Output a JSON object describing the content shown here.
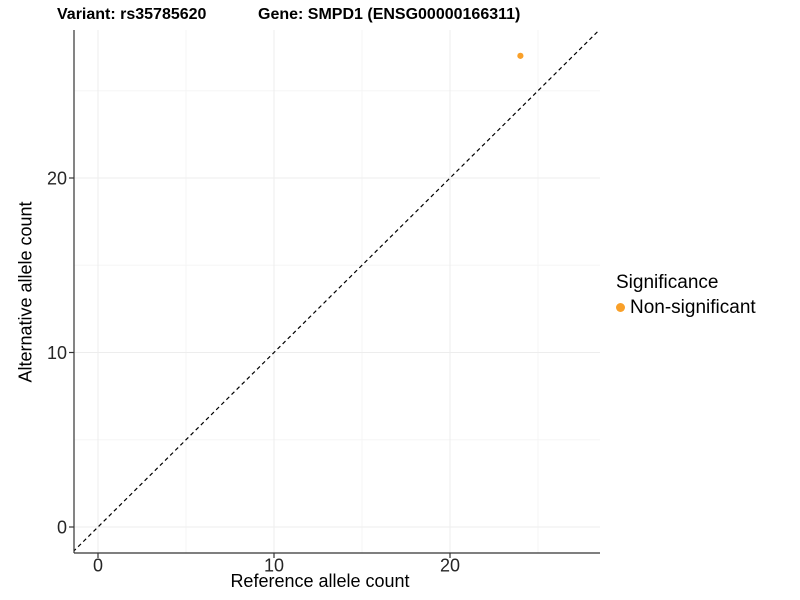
{
  "header": {
    "variant_title": "Variant: rs35785620",
    "gene_title": "Gene: SMPD1 (ENSG00000166311)"
  },
  "axes": {
    "x_label": "Reference allele count",
    "y_label": "Alternative allele count"
  },
  "legend": {
    "title": "Significance",
    "items": [
      {
        "label": "Non-significant",
        "color": "#F9A029"
      }
    ]
  },
  "chart_data": {
    "type": "scatter",
    "title": "Variant: rs35785620  Gene: SMPD1 (ENSG00000166311)",
    "xlabel": "Reference allele count",
    "ylabel": "Alternative allele count",
    "xlim": [
      -1.5,
      28.5
    ],
    "ylim": [
      -1.5,
      28.5
    ],
    "x_ticks": [
      0,
      10,
      20
    ],
    "x_minor_ticks": [
      5,
      15,
      25
    ],
    "y_ticks": [
      0,
      10,
      20
    ],
    "y_minor_ticks": [
      5,
      15,
      25
    ],
    "grid": true,
    "legend_title": "Significance",
    "legend_position": "right",
    "series": [
      {
        "name": "Non-significant",
        "color": "#F9A029",
        "points": [
          {
            "x": 24,
            "y": 27
          }
        ]
      }
    ],
    "reference_line": {
      "type": "identity",
      "equation": "y = x",
      "style": "dashed",
      "color": "#000000"
    }
  },
  "colors": {
    "background": "#FFFFFF",
    "axis_line": "#333333",
    "grid_major": "#EDEDED",
    "grid_minor": "#F5F5F5",
    "tick_text": "#262626",
    "point": "#F9A029"
  }
}
